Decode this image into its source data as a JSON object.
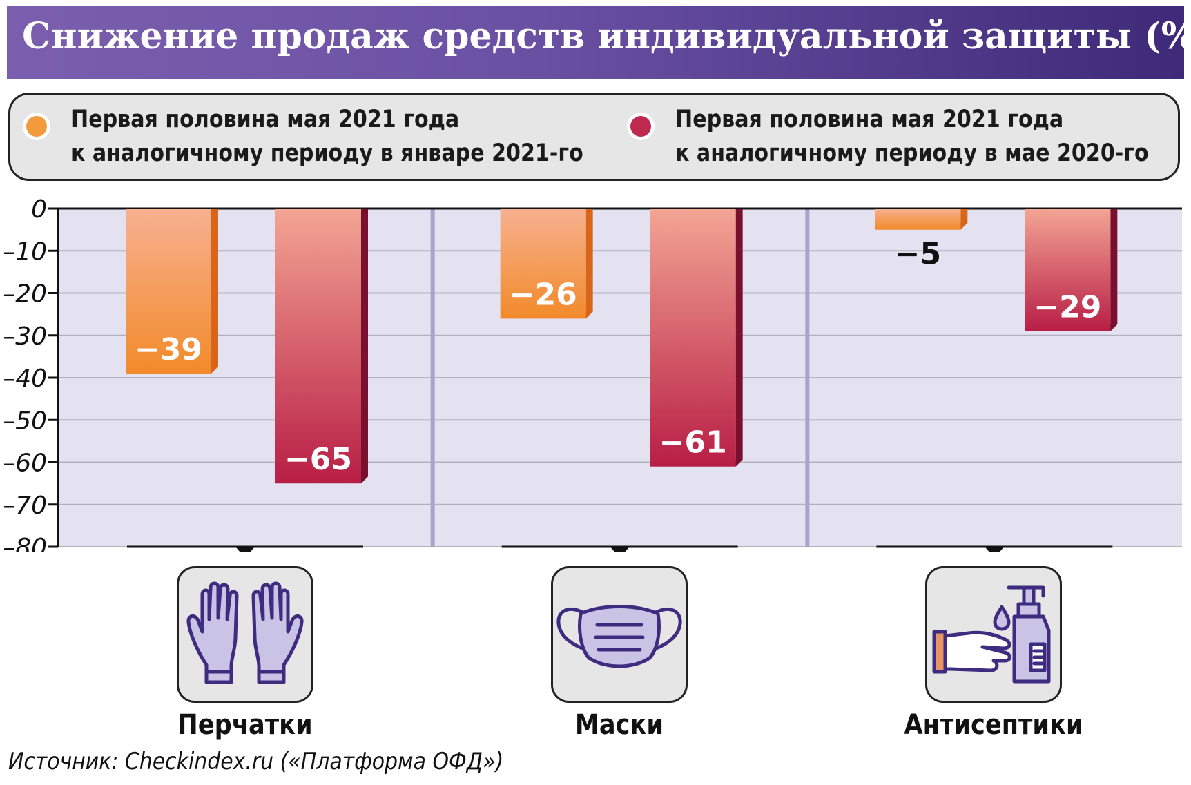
{
  "chart_data": {
    "type": "bar",
    "title": "Снижение продаж средств индивидуальной защиты (%)",
    "categories": [
      "Перчатки",
      "Маски",
      "Антисептики"
    ],
    "series": [
      {
        "name": "Первая половина мая 2021 года к аналогичному периоду в январе 2021-го",
        "name_lines": [
          "Первая половина мая 2021 года",
          "к аналогичному периоду в январе 2021-го"
        ],
        "color": "#f39a3c",
        "values": [
          -39,
          -26,
          -5
        ],
        "value_labels": [
          "−39",
          "−26",
          "−5"
        ]
      },
      {
        "name": "Первая половина мая 2021 года к аналогичному периоду в мае 2020-го",
        "name_lines": [
          "Первая половина мая 2021 года",
          "к аналогичному периоду в мае 2020-го"
        ],
        "color": "#c0294f",
        "values": [
          -65,
          -61,
          -29
        ],
        "value_labels": [
          "−65",
          "−61",
          "−29"
        ]
      }
    ],
    "yticks": [
      0,
      -10,
      -20,
      -30,
      -40,
      -50,
      -60,
      -70,
      -80
    ],
    "ytick_labels": [
      "0",
      "–10",
      "–20",
      "–30",
      "–40",
      "–50",
      "–60",
      "–70",
      "–80"
    ],
    "ylim": [
      -80,
      0
    ],
    "grid": true,
    "legend_position": "top",
    "icons": [
      "gloves-icon",
      "mask-icon",
      "antiseptic-icon"
    ]
  },
  "source": "Источник: Checkindex.ru («Платформа ОФД»)"
}
